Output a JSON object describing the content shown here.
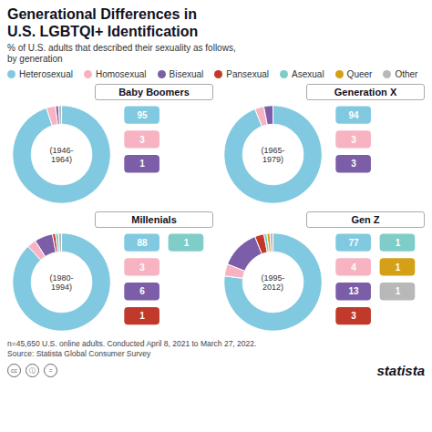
{
  "title": "Generational Differences in\nU.S. LGBTQI+ Identification",
  "subtitle": "% of U.S. adults that described their sexuality as follows,\nby generation",
  "caption": "n=45,650 U.S. online adults. Conducted April 8, 2021 to March 27, 2022.\nSource: Statista Global Consumer Survey",
  "logo": "statista",
  "icons": [
    "cc",
    "ⓘ",
    "="
  ],
  "legend_entries": [
    {
      "name": "Heterosexual",
      "color": "#80c9e0"
    },
    {
      "name": "Homosexual",
      "color": "#f7b3c2"
    },
    {
      "name": "Bisexual",
      "color": "#7b5ea7"
    },
    {
      "name": "Pansexual",
      "color": "#c0392b"
    },
    {
      "name": "Asexual",
      "color": "#7ecdc8"
    },
    {
      "name": "Queer",
      "color": "#d4a017"
    },
    {
      "name": "Other",
      "color": "#b8b8b8"
    }
  ],
  "chart_data": [
    {
      "type": "donut",
      "title": "Baby Boomers",
      "annotations": [
        "(1946-\n1964)"
      ],
      "categories": [
        "Heterosexual",
        "Homosexual",
        "Bisexual",
        "Other"
      ],
      "values": [
        95,
        3,
        1,
        1
      ],
      "colors": [
        "#80c9e0",
        "#f7b3c2",
        "#7b5ea7",
        "#b8b8b8"
      ],
      "data_labels": true,
      "value_labels": [
        "95",
        "3",
        "1",
        null
      ]
    },
    {
      "type": "donut",
      "title": "Generation X",
      "annotations": [
        "(1965-\n1979)"
      ],
      "categories": [
        "Heterosexual",
        "Homosexual",
        "Bisexual"
      ],
      "values": [
        94,
        3,
        3
      ],
      "colors": [
        "#80c9e0",
        "#f7b3c2",
        "#7b5ea7"
      ],
      "data_labels": true,
      "value_labels": [
        "94",
        "3",
        "3"
      ]
    },
    {
      "type": "donut",
      "title": "Millenials",
      "annotations": [
        "(1980-\n1994)"
      ],
      "categories": [
        "Heterosexual",
        "Homosexual",
        "Bisexual",
        "Pansexual",
        "Asexual",
        "Other"
      ],
      "values": [
        88,
        3,
        6,
        1,
        1,
        1
      ],
      "colors": [
        "#80c9e0",
        "#f7b3c2",
        "#7b5ea7",
        "#c0392b",
        "#7ecdc8",
        "#b8b8b8"
      ],
      "data_labels": true,
      "value_labels": [
        "88",
        "3",
        "6",
        "1",
        "1",
        null
      ]
    },
    {
      "type": "donut",
      "title": "Gen Z",
      "annotations": [
        "(1995-\n2012)"
      ],
      "categories": [
        "Heterosexual",
        "Homosexual",
        "Bisexual",
        "Pansexual",
        "Asexual",
        "Queer",
        "Other"
      ],
      "values": [
        77,
        4,
        13,
        3,
        1,
        1,
        1
      ],
      "colors": [
        "#80c9e0",
        "#f7b3c2",
        "#7b5ea7",
        "#c0392b",
        "#7ecdc8",
        "#d4a017",
        "#b8b8b8"
      ],
      "data_labels": true,
      "value_labels": [
        "77",
        "4",
        "13",
        "3",
        "1",
        "1",
        "1"
      ]
    }
  ]
}
